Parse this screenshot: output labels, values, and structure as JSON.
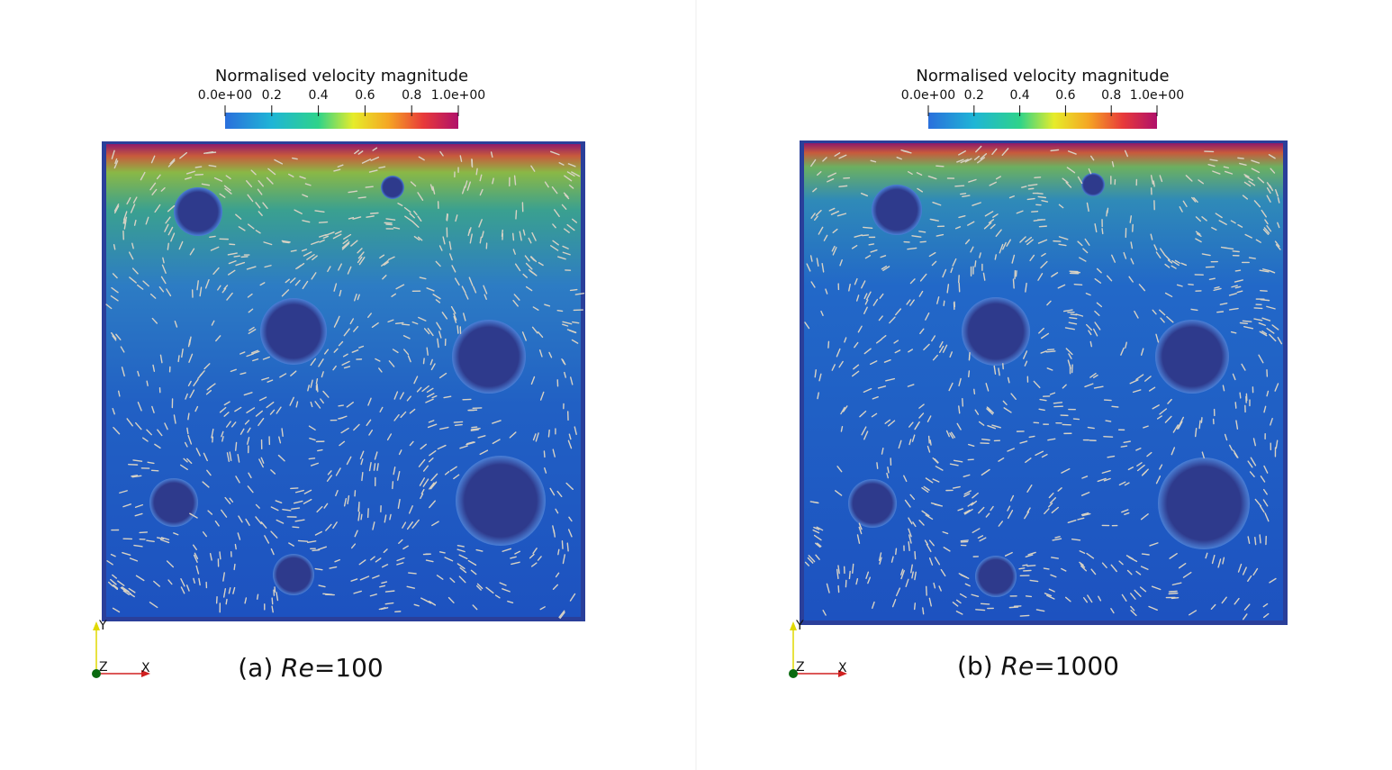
{
  "panels": [
    {
      "colorbar": {
        "title": "Normalised velocity magnitude",
        "range": [
          0,
          1
        ],
        "ticks": [
          {
            "value": 0,
            "label": "0.0e+00"
          },
          0.2,
          0.4,
          0.6,
          0.8,
          {
            "value": 1,
            "label": "1.0e+00"
          }
        ]
      },
      "axes": {
        "y": "Y",
        "z": "Z",
        "x": "X"
      },
      "caption": {
        "label": "(a)",
        "variable": "Re",
        "value_text": "=100"
      }
    },
    {
      "colorbar": {
        "title": "Normalised velocity magnitude",
        "range": [
          0,
          1
        ],
        "ticks": [
          {
            "value": 0,
            "label": "0.0e+00"
          },
          0.2,
          0.4,
          0.6,
          0.8,
          {
            "value": 1,
            "label": "1.0e+00"
          }
        ]
      },
      "axes": {
        "y": "Y",
        "z": "Z",
        "x": "X"
      },
      "caption": {
        "label": "(b)",
        "variable": "Re",
        "value_text": "=1000"
      }
    }
  ]
}
